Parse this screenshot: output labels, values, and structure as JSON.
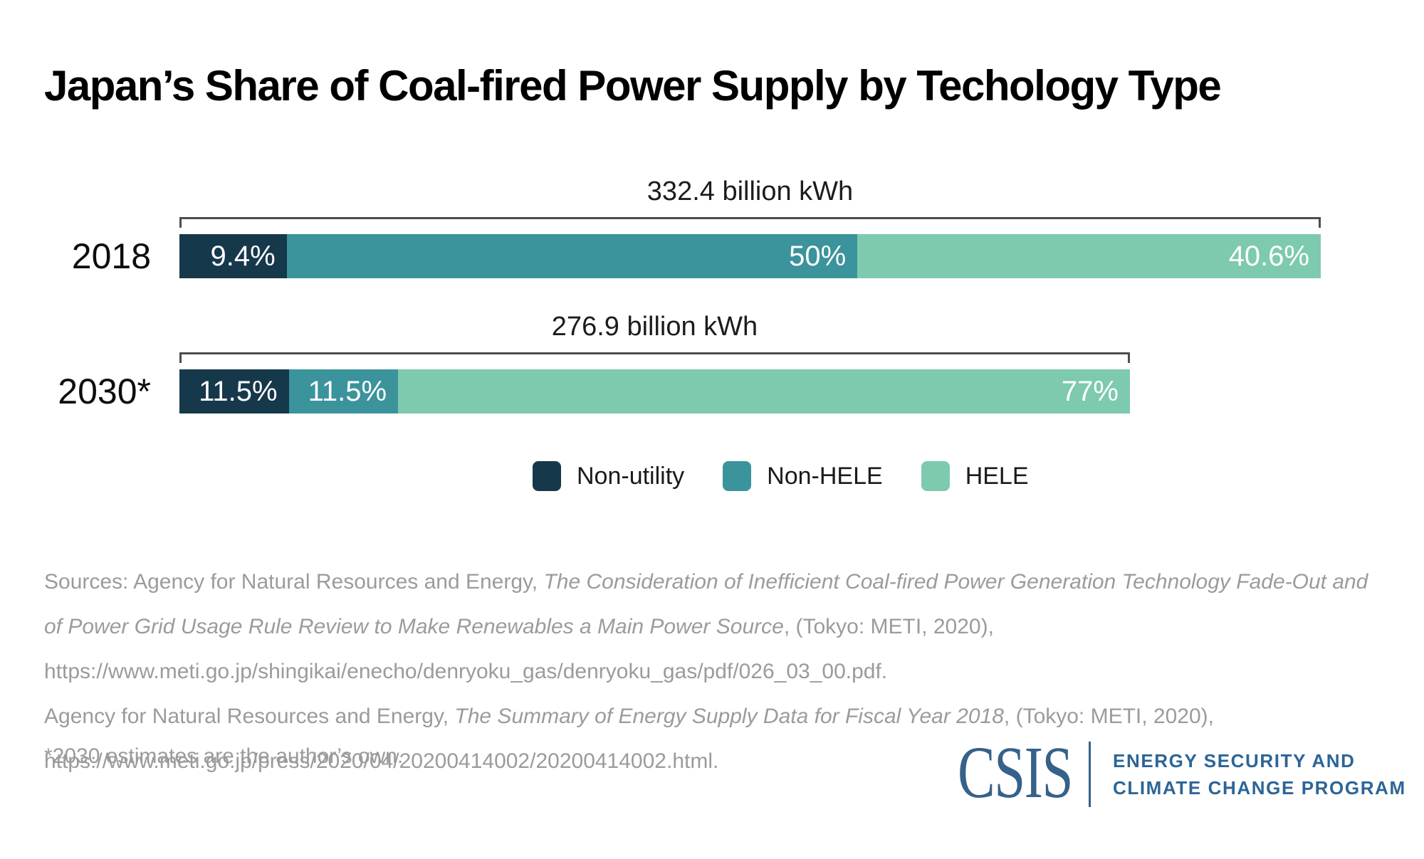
{
  "title": "Japan’s Share of Coal-fired Power Supply by Techology Type",
  "chart_data": {
    "type": "bar",
    "stacked": true,
    "orientation": "horizontal",
    "title": "Japan’s Share of Coal-fired Power Supply by Techology Type",
    "categories": [
      "2018",
      "2030*"
    ],
    "totals": {
      "labels": [
        "332.4 billion kWh",
        "276.9 billion kWh"
      ],
      "values": [
        332.4,
        276.9
      ],
      "unit": "billion kWh"
    },
    "series": [
      {
        "name": "Non-utility",
        "color": "#16384b",
        "values_pct": [
          9.4,
          11.5
        ],
        "labels": [
          "9.4%",
          "11.5%"
        ]
      },
      {
        "name": "Non-HELE",
        "color": "#3b939c",
        "values_pct": [
          50,
          11.5
        ],
        "labels": [
          "50%",
          "11.5%"
        ]
      },
      {
        "name": "HELE",
        "color": "#7dcaae",
        "values_pct": [
          40.6,
          77
        ],
        "labels": [
          "40.6%",
          "77%"
        ]
      }
    ],
    "legend_position": "bottom-center",
    "value_label_color": "#ffffff",
    "bracket_color": "#4d4d4d",
    "grid": false
  },
  "sources": {
    "line1_regular": "Sources: Agency for Natural Resources and Energy, ",
    "line1_italic": "The Consideration of Inefficient Coal-fired Power Generation Technology Fade-Out and",
    "line2_italic": "of Power Grid Usage Rule Review to Make Renewables a Main Power Source",
    "line2_regular": ", (Tokyo: METI, 2020),",
    "line3": "https://www.meti.go.jp/shingikai/enecho/denryoku_gas/denryoku_gas/pdf/026_03_00.pdf.",
    "line4_regular": "Agency for Natural Resources and Energy, ",
    "line4_italic": "The Summary of Energy Supply Data for Fiscal Year 2018",
    "line4_regular2": ", (Tokyo: METI, 2020),",
    "line5": "https://www.meti.go.jp/press/2020/04/20200414002/20200414002.html."
  },
  "footnote": "*2030 estimates are the author’s own.",
  "logo": {
    "acronym": "CSIS",
    "program_line1": "ENERGY SECURITY AND",
    "program_line2": "CLIMATE CHANGE PROGRAM",
    "color": "#35618a"
  }
}
